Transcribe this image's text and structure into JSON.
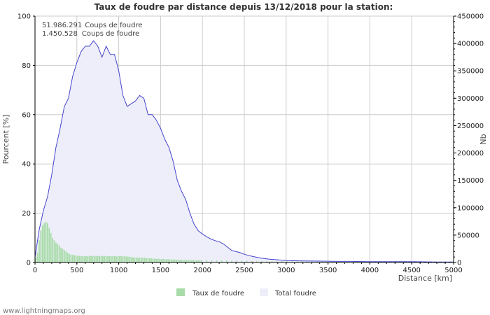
{
  "chart_data": {
    "type": "bar+area",
    "title": "Taux de foudre par distance depuis 13/12/2018 pour la station:",
    "xlabel": "Distance   [km]",
    "ylabel_left": "Pourcent   [%]",
    "ylabel_right": "Nb",
    "xlim": [
      0,
      5000
    ],
    "ylim_left": [
      0,
      100
    ],
    "ylim_right": [
      0,
      450000
    ],
    "x_ticks": [
      0,
      500,
      1000,
      1500,
      2000,
      2500,
      3000,
      3500,
      4000,
      4500,
      5000
    ],
    "y_left_ticks": [
      0,
      20,
      40,
      60,
      80,
      100
    ],
    "y_right_ticks": [
      0,
      50000,
      100000,
      150000,
      200000,
      250000,
      300000,
      350000,
      400000,
      450000
    ],
    "info_lines": [
      {
        "value": "51.986.291",
        "label": "Coups de foudre"
      },
      {
        "value": "1.450.528",
        "label": "Coups de foudre"
      }
    ],
    "legend": [
      {
        "name": "Taux de foudre",
        "color": "#a8dca8"
      },
      {
        "name": "Total foudre",
        "color": "#eeeefa"
      }
    ],
    "series": [
      {
        "name": "Total foudre",
        "axis": "right",
        "color": "#4444cc",
        "fill": "#eeeefa",
        "points": [
          [
            0,
            10000
          ],
          [
            50,
            60000
          ],
          [
            100,
            95000
          ],
          [
            150,
            120000
          ],
          [
            200,
            160000
          ],
          [
            250,
            210000
          ],
          [
            300,
            245000
          ],
          [
            350,
            285000
          ],
          [
            400,
            300000
          ],
          [
            450,
            340000
          ],
          [
            500,
            365000
          ],
          [
            550,
            385000
          ],
          [
            600,
            395000
          ],
          [
            650,
            395000
          ],
          [
            700,
            405000
          ],
          [
            750,
            395000
          ],
          [
            800,
            375000
          ],
          [
            850,
            395000
          ],
          [
            900,
            380000
          ],
          [
            950,
            380000
          ],
          [
            1000,
            350000
          ],
          [
            1050,
            305000
          ],
          [
            1100,
            285000
          ],
          [
            1150,
            290000
          ],
          [
            1200,
            295000
          ],
          [
            1250,
            305000
          ],
          [
            1300,
            300000
          ],
          [
            1350,
            270000
          ],
          [
            1400,
            270000
          ],
          [
            1450,
            260000
          ],
          [
            1500,
            245000
          ],
          [
            1550,
            225000
          ],
          [
            1600,
            210000
          ],
          [
            1650,
            185000
          ],
          [
            1700,
            150000
          ],
          [
            1750,
            130000
          ],
          [
            1800,
            115000
          ],
          [
            1850,
            90000
          ],
          [
            1900,
            70000
          ],
          [
            1950,
            58000
          ],
          [
            2000,
            52000
          ],
          [
            2050,
            47000
          ],
          [
            2100,
            43000
          ],
          [
            2150,
            40000
          ],
          [
            2200,
            38000
          ],
          [
            2250,
            34000
          ],
          [
            2300,
            28000
          ],
          [
            2350,
            22000
          ],
          [
            2400,
            20000
          ],
          [
            2450,
            18000
          ],
          [
            2500,
            15000
          ],
          [
            2550,
            13000
          ],
          [
            2600,
            11000
          ],
          [
            2700,
            8000
          ],
          [
            2800,
            6000
          ],
          [
            2900,
            5000
          ],
          [
            3000,
            3500
          ],
          [
            3200,
            3000
          ],
          [
            3400,
            2500
          ],
          [
            3600,
            2000
          ],
          [
            3800,
            2000
          ],
          [
            4000,
            1500
          ],
          [
            4200,
            1500
          ],
          [
            4500,
            1500
          ],
          [
            4800,
            1000
          ],
          [
            5000,
            1000
          ]
        ]
      },
      {
        "name": "Taux de foudre",
        "axis": "left",
        "color": "#a8dca8",
        "bar_width_km": 20,
        "points": [
          [
            10,
            2
          ],
          [
            30,
            4
          ],
          [
            50,
            9
          ],
          [
            70,
            13
          ],
          [
            90,
            15
          ],
          [
            110,
            16
          ],
          [
            130,
            16.5
          ],
          [
            150,
            16
          ],
          [
            170,
            14
          ],
          [
            190,
            12
          ],
          [
            210,
            10
          ],
          [
            230,
            9
          ],
          [
            250,
            8
          ],
          [
            270,
            7.5
          ],
          [
            290,
            7
          ],
          [
            310,
            6
          ],
          [
            330,
            5.5
          ],
          [
            350,
            5
          ],
          [
            370,
            4.5
          ],
          [
            390,
            4
          ],
          [
            410,
            3.5
          ],
          [
            430,
            3.2
          ],
          [
            450,
            3
          ],
          [
            470,
            3
          ],
          [
            490,
            2.8
          ],
          [
            510,
            2.7
          ],
          [
            530,
            2.7
          ],
          [
            550,
            2.6
          ],
          [
            570,
            2.6
          ],
          [
            590,
            2.6
          ],
          [
            610,
            2.6
          ],
          [
            630,
            2.6
          ],
          [
            650,
            2.6
          ],
          [
            670,
            2.7
          ],
          [
            690,
            2.7
          ],
          [
            710,
            2.7
          ],
          [
            730,
            2.7
          ],
          [
            750,
            2.6
          ],
          [
            770,
            2.7
          ],
          [
            790,
            2.6
          ],
          [
            810,
            2.6
          ],
          [
            830,
            2.6
          ],
          [
            850,
            2.7
          ],
          [
            870,
            2.6
          ],
          [
            890,
            2.6
          ],
          [
            910,
            2.5
          ],
          [
            930,
            2.6
          ],
          [
            950,
            2.6
          ],
          [
            970,
            2.5
          ],
          [
            990,
            2.5
          ],
          [
            1010,
            2.6
          ],
          [
            1030,
            2.6
          ],
          [
            1050,
            2.5
          ],
          [
            1070,
            2.5
          ],
          [
            1090,
            2.5
          ],
          [
            1110,
            2.4
          ],
          [
            1130,
            2.3
          ],
          [
            1150,
            2.2
          ],
          [
            1170,
            2.1
          ],
          [
            1190,
            2
          ],
          [
            1210,
            2
          ],
          [
            1230,
            2
          ],
          [
            1250,
            2
          ],
          [
            1270,
            2
          ],
          [
            1290,
            2
          ],
          [
            1310,
            1.9
          ],
          [
            1330,
            1.8
          ],
          [
            1350,
            1.8
          ],
          [
            1370,
            1.7
          ],
          [
            1390,
            1.7
          ],
          [
            1410,
            1.6
          ],
          [
            1430,
            1.6
          ],
          [
            1450,
            1.5
          ],
          [
            1470,
            1.5
          ],
          [
            1490,
            1.5
          ],
          [
            1510,
            1.4
          ],
          [
            1530,
            1.4
          ],
          [
            1550,
            1.4
          ],
          [
            1570,
            1.3
          ],
          [
            1590,
            1.3
          ],
          [
            1610,
            1.3
          ],
          [
            1630,
            1.2
          ],
          [
            1650,
            1.2
          ],
          [
            1670,
            1.2
          ],
          [
            1690,
            1.2
          ],
          [
            1710,
            1.1
          ],
          [
            1730,
            1.1
          ],
          [
            1750,
            1.1
          ],
          [
            1770,
            1
          ],
          [
            1790,
            1
          ],
          [
            1810,
            1
          ],
          [
            1830,
            1
          ],
          [
            1850,
            1
          ],
          [
            1870,
            1
          ],
          [
            1890,
            1
          ],
          [
            1910,
            0.9
          ],
          [
            1930,
            0.9
          ],
          [
            1950,
            0.9
          ],
          [
            1970,
            0.9
          ],
          [
            1990,
            0.9
          ],
          [
            2050,
            0.9
          ],
          [
            2110,
            0.8
          ],
          [
            2170,
            0.8
          ],
          [
            2230,
            0.8
          ],
          [
            2290,
            0.8
          ],
          [
            2350,
            0.7
          ],
          [
            2410,
            0.7
          ],
          [
            2470,
            0.7
          ],
          [
            2530,
            0.7
          ],
          [
            2590,
            0.6
          ],
          [
            2650,
            0.6
          ],
          [
            2710,
            0.6
          ],
          [
            2770,
            0.6
          ],
          [
            2830,
            0.5
          ],
          [
            2890,
            0.5
          ],
          [
            2950,
            0.5
          ],
          [
            3010,
            0.5
          ],
          [
            3070,
            0.5
          ],
          [
            3130,
            0.5
          ],
          [
            3190,
            0.4
          ],
          [
            3250,
            0.4
          ],
          [
            3310,
            0.4
          ],
          [
            3370,
            0.4
          ],
          [
            3430,
            0.4
          ],
          [
            3490,
            0.4
          ],
          [
            3550,
            0.3
          ],
          [
            3610,
            0.3
          ],
          [
            3670,
            0.3
          ],
          [
            3730,
            0.3
          ],
          [
            3790,
            0.3
          ],
          [
            3850,
            0.3
          ],
          [
            3910,
            0.3
          ],
          [
            3970,
            0.3
          ],
          [
            4030,
            0.3
          ],
          [
            4090,
            0.3
          ],
          [
            4150,
            0.3
          ],
          [
            4210,
            0.3
          ],
          [
            4270,
            0.3
          ],
          [
            4330,
            0.3
          ],
          [
            4390,
            0.3
          ],
          [
            4450,
            0.3
          ],
          [
            4510,
            0.3
          ],
          [
            4570,
            0.3
          ],
          [
            4630,
            0.3
          ],
          [
            4690,
            0.3
          ],
          [
            4750,
            0.3
          ],
          [
            4810,
            0.3
          ],
          [
            4870,
            0.3
          ],
          [
            4930,
            0.3
          ],
          [
            4990,
            0.3
          ]
        ]
      }
    ]
  },
  "footer": {
    "source": "www.lightningmaps.org"
  },
  "colors": {
    "grid": "#cccccc",
    "axis": "#000000",
    "area_line": "#4444cc",
    "area_fill": "#eeeefa",
    "bars": "#a8dca8"
  }
}
